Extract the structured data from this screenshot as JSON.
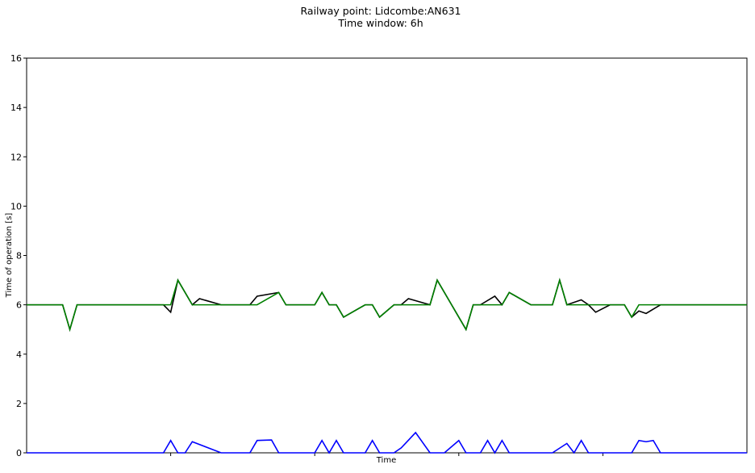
{
  "chart_data": {
    "type": "line",
    "title": "Railway point: Lidcombe:AN631",
    "subtitle": "Time window: 6h",
    "xlabel": "Time",
    "ylabel": "Time of operation [s]",
    "xlim": [
      0,
      100
    ],
    "ylim": [
      0,
      16
    ],
    "yticks": [
      0,
      2,
      4,
      6,
      8,
      10,
      12,
      14,
      16
    ],
    "xticks": [
      20,
      40,
      60,
      80
    ],
    "xtick_labels": [],
    "grid": false,
    "legend": "none",
    "series": [
      {
        "color": "#000000",
        "x": [
          0,
          5,
          6,
          7,
          19,
          20,
          21,
          23,
          24,
          27,
          31,
          32,
          35,
          36,
          37,
          40,
          41,
          42,
          43,
          44,
          47,
          48,
          49,
          51,
          52,
          53,
          56,
          57,
          59,
          61,
          62,
          63,
          65,
          66,
          67,
          70,
          73,
          74,
          75,
          77,
          78,
          79,
          81,
          83,
          84,
          85,
          86,
          88,
          100
        ],
        "y": [
          6,
          6,
          5,
          6,
          6,
          5.7,
          7,
          6,
          6.25,
          6,
          6,
          6.35,
          6.5,
          6,
          6,
          6,
          6.5,
          6,
          6,
          5.5,
          6,
          6,
          5.5,
          6,
          6,
          6.25,
          6,
          7,
          6,
          5,
          6,
          6,
          6.35,
          6,
          6.5,
          6,
          6,
          7,
          6,
          6.2,
          6,
          5.7,
          6,
          6,
          5.5,
          5.75,
          5.65,
          6,
          6
        ]
      },
      {
        "color": "#008000",
        "x": [
          0,
          5,
          6,
          7,
          19,
          20,
          21,
          23,
          31,
          32,
          35,
          36,
          37,
          40,
          41,
          42,
          43,
          44,
          47,
          48,
          49,
          51,
          52,
          53,
          56,
          57,
          59,
          61,
          62,
          63,
          65,
          66,
          67,
          70,
          73,
          74,
          75,
          77,
          78,
          79,
          81,
          83,
          84,
          85,
          86,
          88,
          100
        ],
        "y": [
          6,
          6,
          5,
          6,
          6,
          6,
          7,
          6,
          6,
          6,
          6.5,
          6,
          6,
          6,
          6.5,
          6,
          6,
          5.5,
          6,
          6,
          5.5,
          6,
          6,
          6,
          6,
          7,
          6,
          5,
          6,
          6,
          6,
          6,
          6.5,
          6,
          6,
          7,
          6,
          6,
          6,
          6,
          6,
          6,
          5.5,
          6,
          6,
          6,
          6
        ]
      },
      {
        "color": "#0000ff",
        "x": [
          0,
          19,
          20,
          21,
          22,
          23,
          27,
          31,
          32,
          34,
          35,
          36,
          37,
          40,
          41,
          42,
          43,
          44,
          47,
          48,
          49,
          51,
          52,
          54,
          56,
          57,
          58,
          60,
          61,
          62,
          63,
          64,
          65,
          66,
          67,
          70,
          73,
          75,
          76,
          77,
          78,
          79,
          81,
          84,
          85,
          86,
          87,
          88,
          100
        ],
        "y": [
          0,
          0,
          0.5,
          0,
          0,
          0.45,
          0,
          0,
          0.5,
          0.52,
          0,
          0,
          0,
          0,
          0.5,
          0,
          0.5,
          0,
          0,
          0.5,
          0,
          0,
          0.2,
          0.82,
          0,
          0,
          0,
          0.5,
          0,
          0,
          0,
          0.5,
          0,
          0.5,
          0,
          0,
          0,
          0.38,
          0,
          0.5,
          0,
          0,
          0,
          0,
          0.5,
          0.45,
          0.5,
          0,
          0
        ]
      }
    ]
  }
}
